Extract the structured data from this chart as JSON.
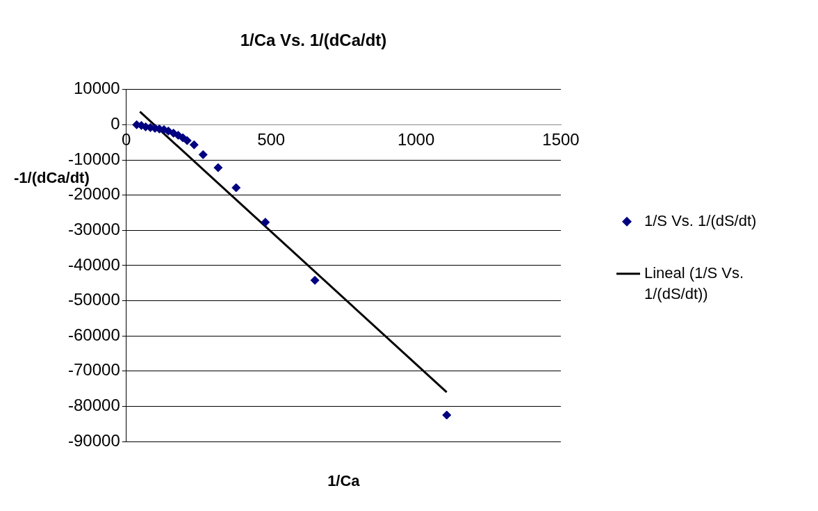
{
  "chart_data": {
    "type": "scatter",
    "title": "1/Ca Vs. 1/(dCa/dt)",
    "xlabel": "1/Ca",
    "ylabel": "-1/(dCa/dt)",
    "xlim": [
      0,
      1500
    ],
    "xticks": [
      0,
      500,
      1000,
      1500
    ],
    "ylim": [
      -90000,
      10000
    ],
    "yticks": [
      -90000,
      -80000,
      -70000,
      -60000,
      -50000,
      -40000,
      -30000,
      -20000,
      -10000,
      0,
      10000
    ],
    "grid": "y",
    "legend": "right",
    "marker": "diamond",
    "series": [
      {
        "name": "1/S Vs. 1/(dS/dt)",
        "color": "#000080",
        "x": [
          36,
          52,
          67,
          83,
          99,
          114,
          130,
          145,
          163,
          179,
          195,
          210,
          234,
          265,
          317,
          379,
          480,
          651,
          1106
        ],
        "values": [
          0,
          -200,
          -600,
          -800,
          -1000,
          -1200,
          -1400,
          -1800,
          -2400,
          -3000,
          -3700,
          -4500,
          -5700,
          -8500,
          -12200,
          -17900,
          -27700,
          -44200,
          -82500
        ]
      },
      {
        "name": "Lineal (1/S Vs. 1/(dS/dt))",
        "type": "line",
        "color": "#000000",
        "marker": "none",
        "line_style": "solid",
        "x": [
          47,
          1106
        ],
        "values": [
          3700,
          -76000
        ]
      }
    ]
  }
}
